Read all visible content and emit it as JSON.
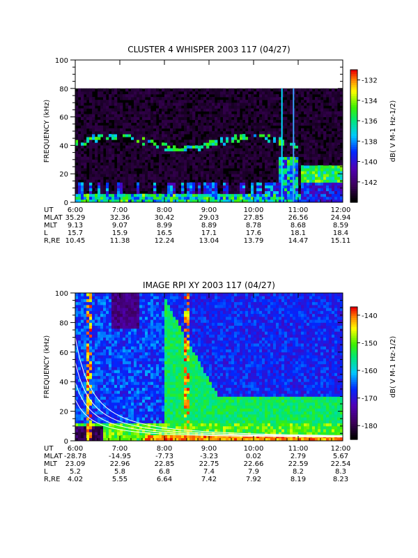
{
  "chart_data": [
    {
      "type": "heatmap",
      "title": "CLUSTER 4 WHISPER 2003 117 (04/27)",
      "ylabel": "FREQUENCY (kHz)",
      "ylim": [
        0,
        100
      ],
      "yticks": [
        "0",
        "20",
        "40",
        "60",
        "80",
        "100"
      ],
      "x_ticks": [
        "6:00",
        "7:00",
        "8:00",
        "9:00",
        "10:00",
        "11:00",
        "12:00"
      ],
      "data_upper_limit_khz": 80,
      "colorbar": {
        "label": "dB( V M-1 Hz-1/2)",
        "range": [
          -144,
          -131
        ],
        "ticks": [
          "-132",
          "-134",
          "-136",
          "-138",
          "-140",
          "-142"
        ]
      },
      "ephemeris": [
        {
          "name": "UT",
          "values": [
            "6:00",
            "7:00",
            "8:00",
            "9:00",
            "10:00",
            "11:00",
            "12:00"
          ]
        },
        {
          "name": "MLAT",
          "values": [
            "35.29",
            "32.36",
            "30.42",
            "29.03",
            "27.85",
            "26.56",
            "24.94"
          ]
        },
        {
          "name": "MLT",
          "values": [
            "9.13",
            "9.07",
            "8.99",
            "8.89",
            "8.78",
            "8.68",
            "8.59"
          ]
        },
        {
          "name": "L",
          "values": [
            "15.7",
            "15.9",
            "16.5",
            "17.1",
            "17.6",
            "18.1",
            "18.4"
          ]
        },
        {
          "name": "R,RE",
          "values": [
            "10.45",
            "11.38",
            "12.24",
            "13.04",
            "13.79",
            "14.47",
            "15.11"
          ]
        }
      ]
    },
    {
      "type": "heatmap",
      "title": "IMAGE RPI XY 2003 117 (04/27)",
      "ylabel": "FREQUENCY (kHz)",
      "ylim": [
        0,
        100
      ],
      "yticks": [
        "0",
        "20",
        "40",
        "60",
        "80",
        "100"
      ],
      "x_ticks": [
        "6:00",
        "7:00",
        "8:00",
        "9:00",
        "10:00",
        "11:00",
        "12:00"
      ],
      "colorbar": {
        "label": "dB( V M-1 Hz-1/2)",
        "range": [
          -185,
          -137
        ],
        "ticks": [
          "-140",
          "-150",
          "-160",
          "-170",
          "-180"
        ]
      },
      "ephemeris": [
        {
          "name": "UT",
          "values": [
            "6:00",
            "7:00",
            "8:00",
            "9:00",
            "10:00",
            "11:00",
            "12:00"
          ]
        },
        {
          "name": "MLAT",
          "values": [
            "-28.78",
            "-14.95",
            "-7.73",
            "-3.23",
            "0.02",
            "2.79",
            "5.67"
          ]
        },
        {
          "name": "MLT",
          "values": [
            "23.09",
            "22.96",
            "22.85",
            "22.75",
            "22.66",
            "22.59",
            "22.54"
          ]
        },
        {
          "name": "L",
          "values": [
            "5.2",
            "5.8",
            "6.8",
            "7.4",
            "7.9",
            "8.2",
            "8.3"
          ]
        },
        {
          "name": "R,RE",
          "values": [
            "4.02",
            "5.55",
            "6.64",
            "7.42",
            "7.92",
            "8.19",
            "8.23"
          ]
        }
      ]
    }
  ]
}
